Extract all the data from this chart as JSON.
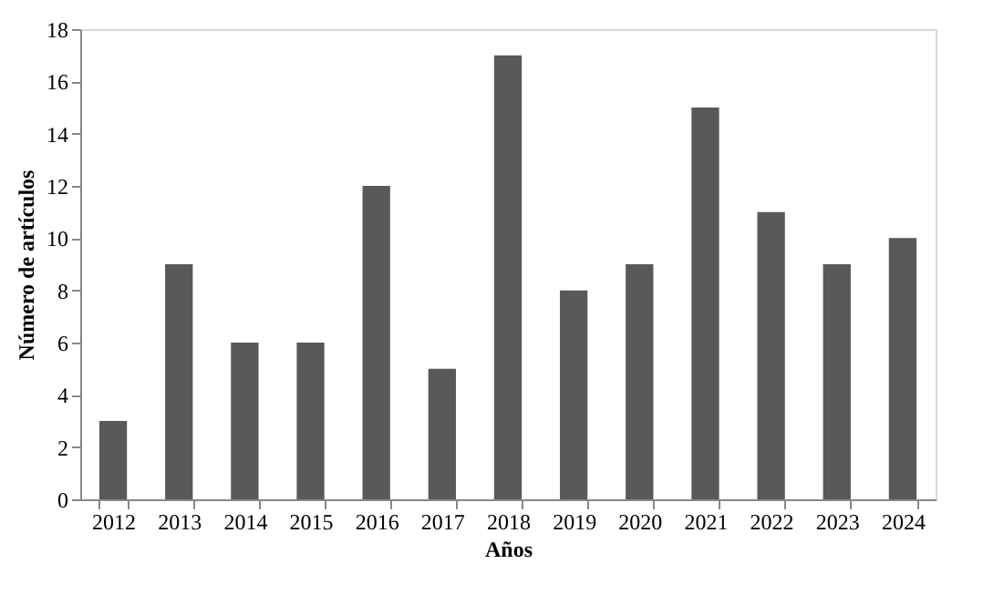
{
  "chart_data": {
    "type": "bar",
    "xlabel": "Años",
    "ylabel": "Número de artículos",
    "categories": [
      "2012",
      "2013",
      "2014",
      "2015",
      "2016",
      "2017",
      "2018",
      "2019",
      "2020",
      "2021",
      "2022",
      "2023",
      "2024"
    ],
    "values": [
      3,
      9,
      6,
      6,
      12,
      5,
      17,
      8,
      9,
      15,
      11,
      9,
      10
    ],
    "color": "#595959",
    "ylim": [
      0,
      18
    ],
    "yticks": [
      0,
      2,
      4,
      6,
      8,
      10,
      12,
      14,
      16,
      18
    ],
    "grid": false
  }
}
